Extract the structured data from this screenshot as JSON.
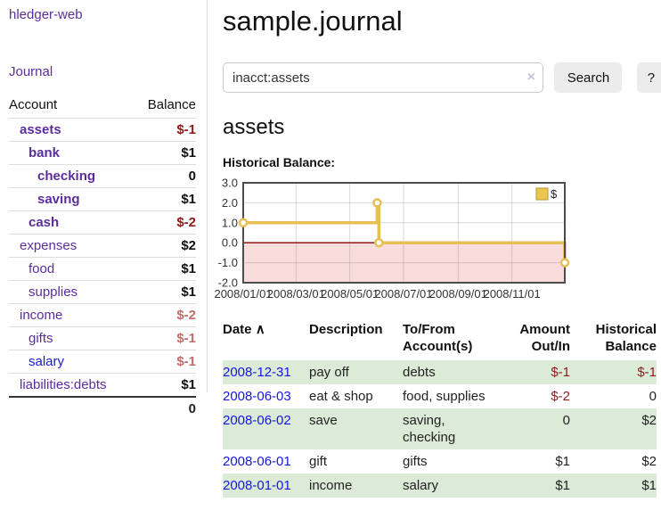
{
  "app_title": "hledger-web",
  "sidebar": {
    "journal_link": "Journal",
    "accounts_table": {
      "headers": {
        "account": "Account",
        "balance": "Balance"
      },
      "rows": [
        {
          "name": "assets",
          "balance": "$-1",
          "depth": 1,
          "bold": true,
          "neg": "strong",
          "link": "purple"
        },
        {
          "name": "bank",
          "balance": "$1",
          "depth": 2,
          "bold": true,
          "neg": "none",
          "link": "purple"
        },
        {
          "name": "checking",
          "balance": "0",
          "depth": 3,
          "bold": true,
          "neg": "none",
          "link": "purple"
        },
        {
          "name": "saving",
          "balance": "$1",
          "depth": 3,
          "bold": true,
          "neg": "none",
          "link": "purple"
        },
        {
          "name": "cash",
          "balance": "$-2",
          "depth": 2,
          "bold": true,
          "neg": "strong",
          "link": "purple"
        },
        {
          "name": "expenses",
          "balance": "$2",
          "depth": 1,
          "bold": false,
          "neg": "none",
          "link": "purple"
        },
        {
          "name": "food",
          "balance": "$1",
          "depth": 2,
          "bold": false,
          "neg": "none",
          "link": "purple"
        },
        {
          "name": "supplies",
          "balance": "$1",
          "depth": 2,
          "bold": false,
          "neg": "none",
          "link": "purple"
        },
        {
          "name": "income",
          "balance": "$-2",
          "depth": 1,
          "bold": false,
          "neg": "soft",
          "link": "purple"
        },
        {
          "name": "gifts",
          "balance": "$-1",
          "depth": 2,
          "bold": false,
          "neg": "soft",
          "link": "purple"
        },
        {
          "name": "salary",
          "balance": "$-1",
          "depth": 2,
          "bold": false,
          "neg": "soft",
          "link": "blue"
        },
        {
          "name": "liabilities:debts",
          "balance": "$1",
          "depth": 1,
          "bold": false,
          "neg": "none",
          "link": "purple"
        }
      ],
      "total": "0"
    }
  },
  "header": {
    "title": "sample.journal"
  },
  "search": {
    "value": "inacct:assets",
    "clear_icon": "×",
    "button_label": "Search",
    "help_label": "?"
  },
  "section": {
    "heading": "assets",
    "chart_title": "Historical Balance:"
  },
  "chart_data": {
    "type": "line",
    "step": true,
    "title": "Historical Balance",
    "series": [
      {
        "name": "$",
        "points": [
          {
            "date": "2008-01-01",
            "value": 1
          },
          {
            "date": "2008-06-01",
            "value": 2
          },
          {
            "date": "2008-06-03",
            "value": 0
          },
          {
            "date": "2008-12-31",
            "value": -1
          }
        ]
      }
    ],
    "xrange": [
      "2008-01-01",
      "2008-12-31"
    ],
    "ylim": [
      -2,
      3
    ],
    "ytick_labels": [
      "3.0",
      "2.0",
      "1.0",
      "0.0",
      "-1.0",
      "-2.0"
    ],
    "yticks": [
      3,
      2,
      1,
      0,
      -1,
      -2
    ],
    "xtick_dates": [
      "2008-01-01",
      "2008-03-01",
      "2008-05-01",
      "2008-07-01",
      "2008-09-01",
      "2008-11-01"
    ],
    "xtick_labels": [
      "2008/01/01",
      "2008/03/01",
      "2008/05/01",
      "2008/07/01",
      "2008/09/01",
      "2008/11/01"
    ],
    "legend": {
      "label": "$",
      "position": "top-right"
    },
    "colors": {
      "line": "#e6bf55",
      "marker_fill": "#ffffff",
      "legend_fill": "#ecc64f",
      "legend_border": "#b6952c",
      "negative_area": "#f9dcdc",
      "zero_line": "#8b0000",
      "frame": "#4d4d4d",
      "grid": "rgba(120,120,120,0.28)",
      "tick_text": "#333333"
    }
  },
  "transactions": {
    "headers": {
      "date": "Date",
      "sort_icon": "∧",
      "description": "Description",
      "accounts": "To/From Account(s)",
      "amount": "Amount Out/In",
      "balance": "Historical Balance"
    },
    "rows": [
      {
        "date": "2008-12-31",
        "description": "pay off",
        "accounts": "debts",
        "amount": "$-1",
        "amount_neg": true,
        "balance": "$-1",
        "balance_neg": true
      },
      {
        "date": "2008-06-03",
        "description": "eat & shop",
        "accounts": "food, supplies",
        "amount": "$-2",
        "amount_neg": true,
        "balance": "0",
        "balance_neg": false
      },
      {
        "date": "2008-06-02",
        "description": "save",
        "accounts": "saving, checking",
        "amount": "0",
        "amount_neg": false,
        "balance": "$2",
        "balance_neg": false
      },
      {
        "date": "2008-06-01",
        "description": "gift",
        "accounts": "gifts",
        "amount": "$1",
        "amount_neg": false,
        "balance": "$2",
        "balance_neg": false
      },
      {
        "date": "2008-01-01",
        "description": "income",
        "accounts": "salary",
        "amount": "$1",
        "amount_neg": false,
        "balance": "$1",
        "balance_neg": false
      }
    ]
  },
  "colors": {
    "link_purple": "#5c2d9c",
    "link_blue": "#1717dd",
    "negative_strong": "#8c1b1b",
    "negative_soft": "#c06c6c",
    "row_stripe_green": "#dcead8",
    "button_bg": "#ececec"
  }
}
